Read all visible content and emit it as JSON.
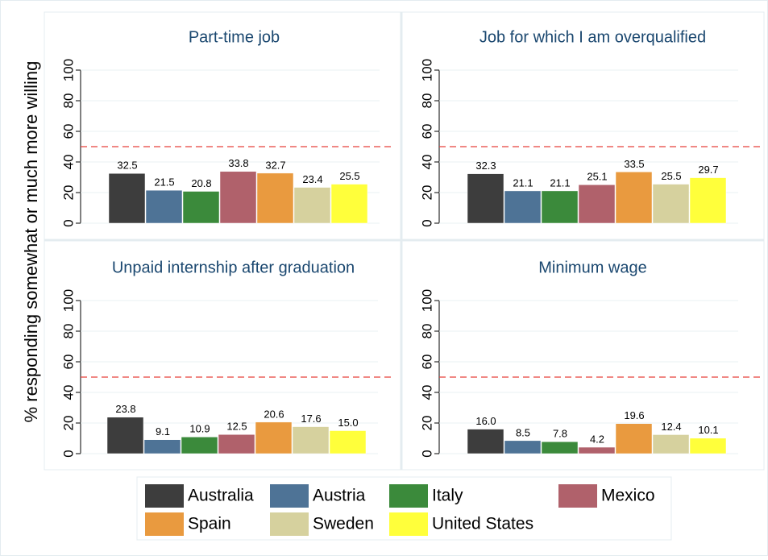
{
  "y_label": "% responding somewhat or much more willing",
  "chart_data": [
    {
      "type": "bar",
      "title": "Part-time job",
      "values": [
        32.5,
        21.5,
        20.8,
        33.8,
        32.7,
        23.4,
        25.5
      ],
      "value_labels": [
        "32.5",
        "21.5",
        "20.8",
        "33.8",
        "32.7",
        "23.4",
        "25.5"
      ],
      "ylim": [
        0,
        110
      ],
      "yticks": [
        0,
        20,
        40,
        60,
        80,
        100
      ],
      "grid": true,
      "reference_line": 50
    },
    {
      "type": "bar",
      "title": "Job for which I am overqualified",
      "values": [
        32.3,
        21.1,
        21.1,
        25.1,
        33.5,
        25.5,
        29.7
      ],
      "value_labels": [
        "32.3",
        "21.1",
        "21.1",
        "25.1",
        "33.5",
        "25.5",
        "29.7"
      ],
      "ylim": [
        0,
        110
      ],
      "yticks": [
        0,
        20,
        40,
        60,
        80,
        100
      ],
      "grid": true,
      "reference_line": 50
    },
    {
      "type": "bar",
      "title": "Unpaid internship after graduation",
      "values": [
        23.8,
        9.1,
        10.9,
        12.5,
        20.6,
        17.6,
        15.0
      ],
      "value_labels": [
        "23.8",
        "9.1",
        "10.9",
        "12.5",
        "20.6",
        "17.6",
        "15.0"
      ],
      "ylim": [
        0,
        110
      ],
      "yticks": [
        0,
        20,
        40,
        60,
        80,
        100
      ],
      "grid": true,
      "reference_line": 50
    },
    {
      "type": "bar",
      "title": "Minimum wage",
      "values": [
        16.0,
        8.5,
        7.8,
        4.2,
        19.6,
        12.4,
        10.1
      ],
      "value_labels": [
        "16.0",
        "8.5",
        "7.8",
        "4.2",
        "19.6",
        "12.4",
        "10.1"
      ],
      "ylim": [
        0,
        110
      ],
      "yticks": [
        0,
        20,
        40,
        60,
        80,
        100
      ],
      "grid": true,
      "reference_line": 50
    }
  ],
  "legend": {
    "entries": [
      {
        "name": "Australia",
        "color": "#3d3d3d"
      },
      {
        "name": "Austria",
        "color": "#4e7396"
      },
      {
        "name": "Italy",
        "color": "#3b8a3b"
      },
      {
        "name": "Mexico",
        "color": "#b0616b"
      },
      {
        "name": "Spain",
        "color": "#e99a3f"
      },
      {
        "name": "Sweden",
        "color": "#d6d19e"
      },
      {
        "name": "United States",
        "color": "#ffff3b"
      }
    ]
  }
}
